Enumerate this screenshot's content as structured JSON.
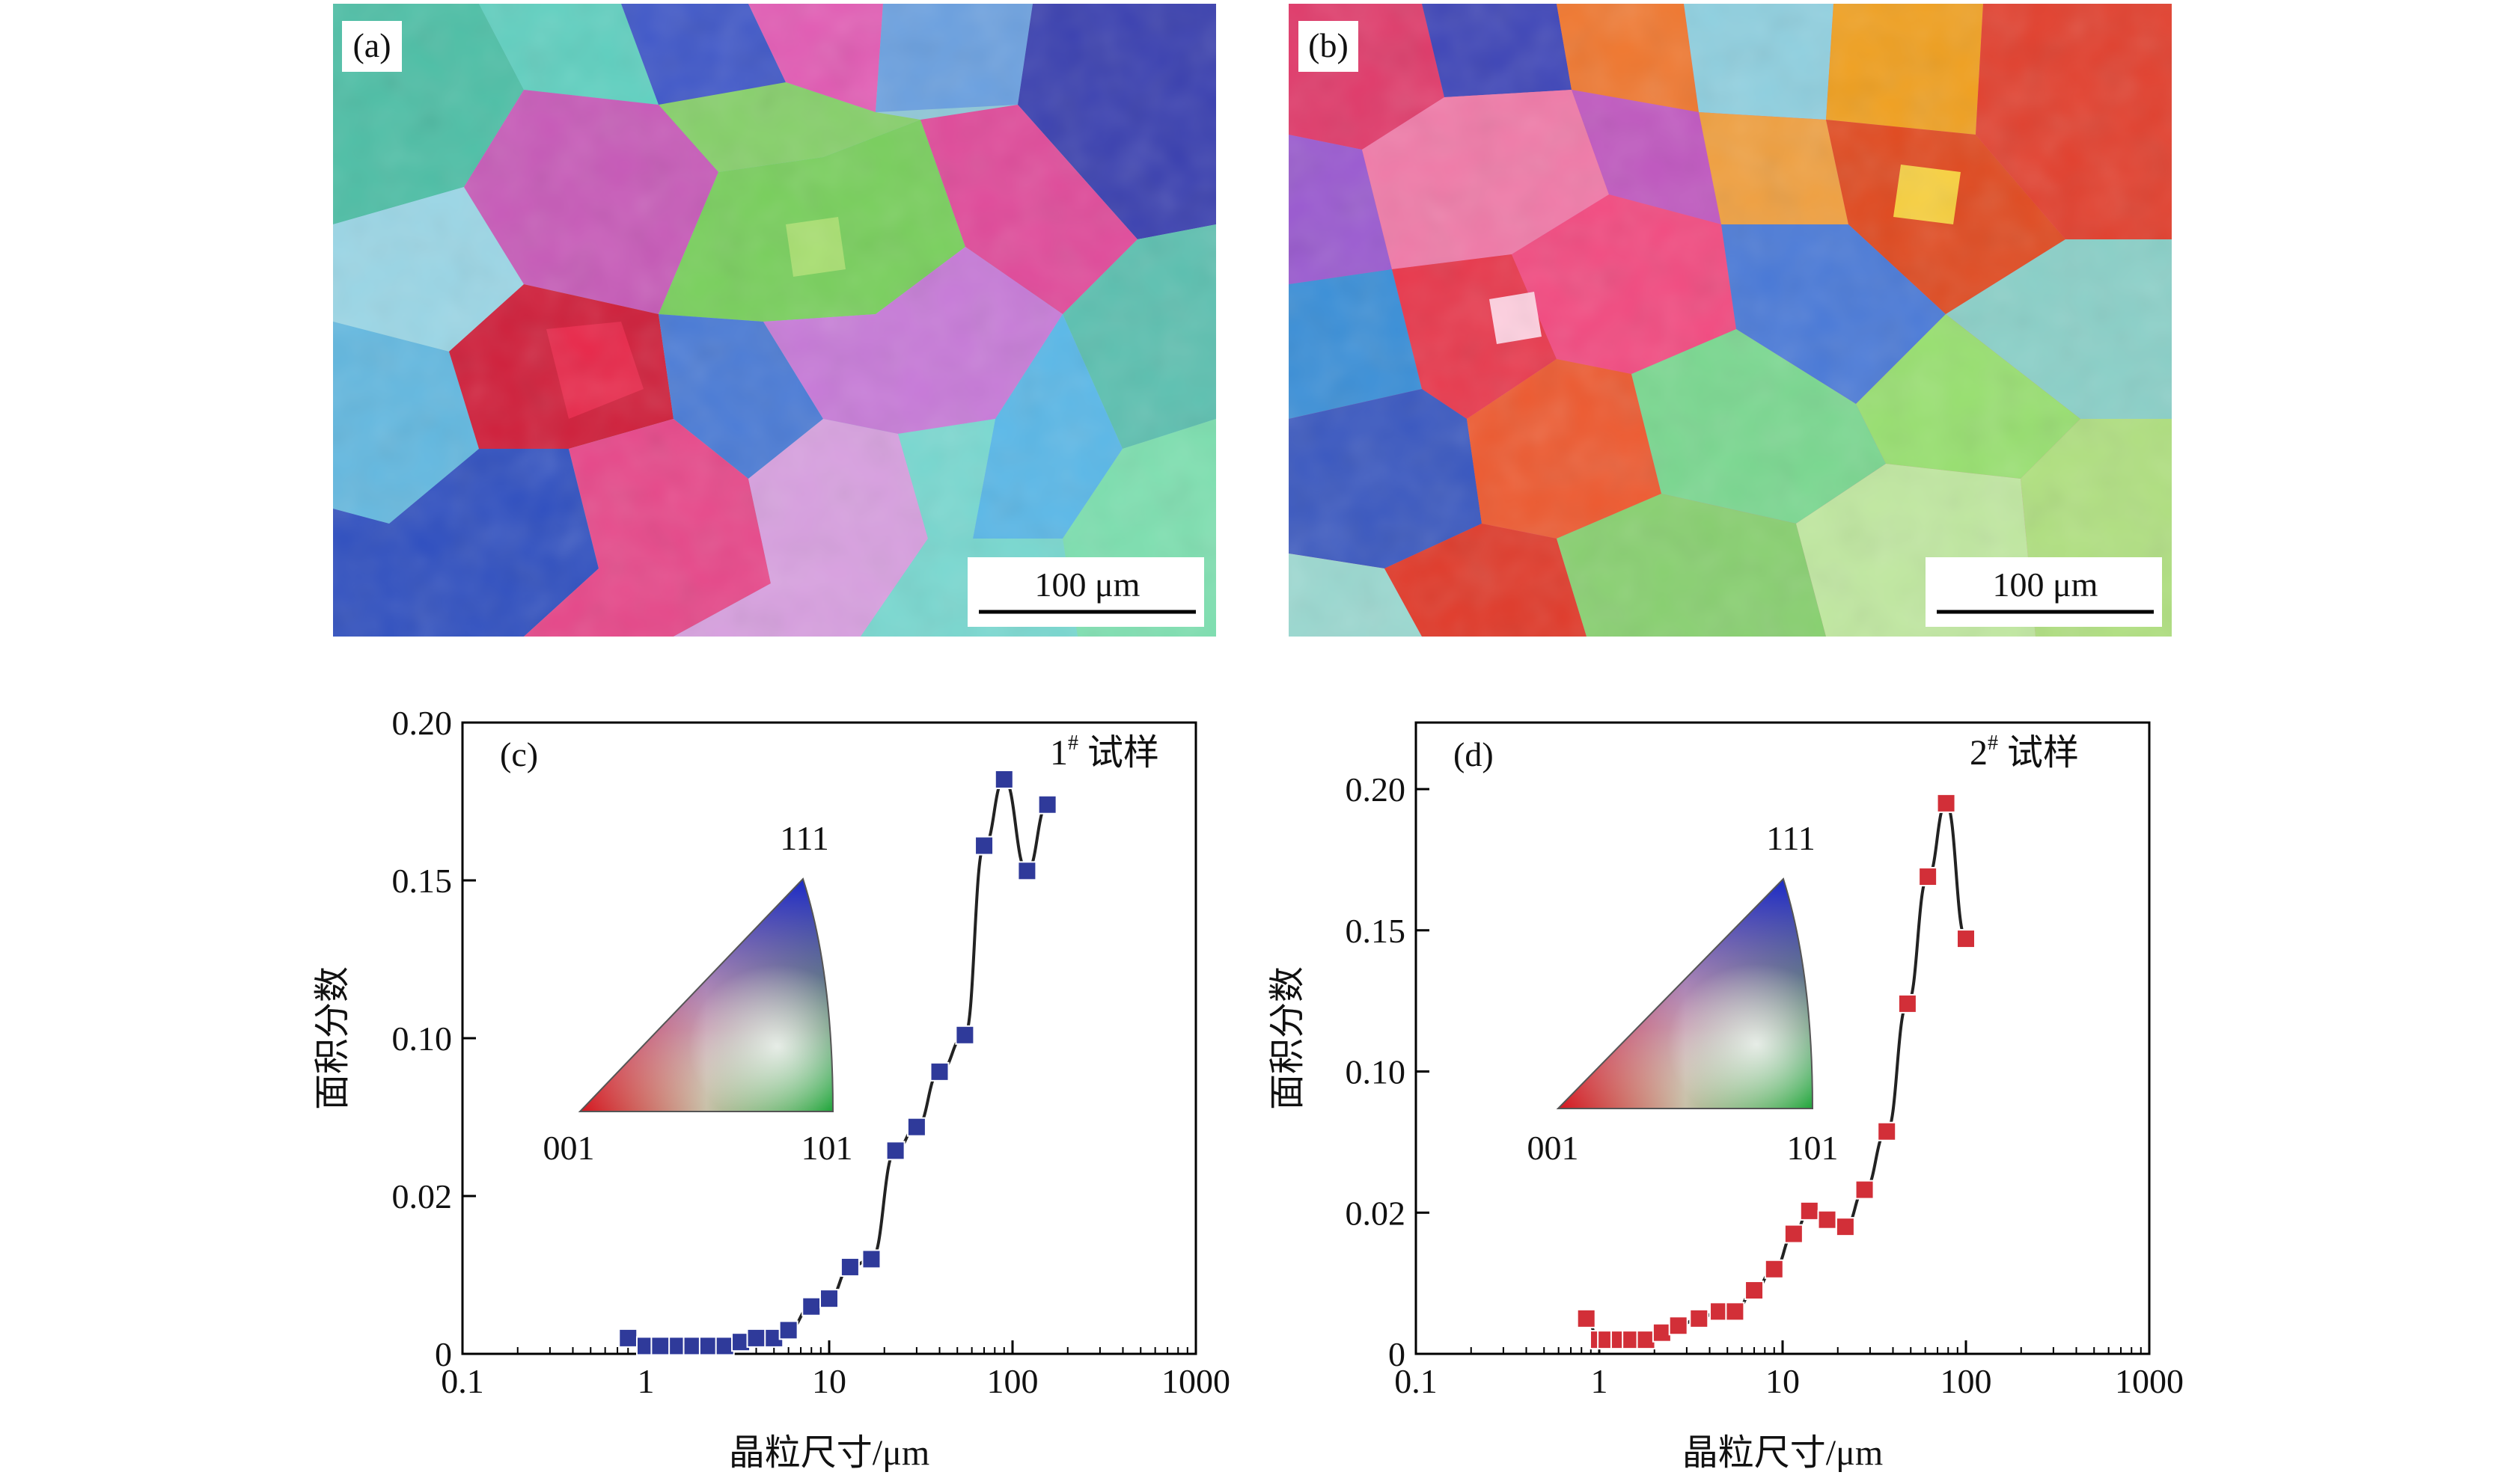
{
  "panels": {
    "a": {
      "label": "(a)",
      "scale_bar": "100 μm"
    },
    "b": {
      "label": "(b)",
      "scale_bar": "100 μm"
    }
  },
  "chart_data": [
    {
      "type": "line",
      "panel_label": "(c)",
      "sample_label": "1",
      "sample_sup": "#",
      "sample_suffix": " 试样",
      "xlabel": "晶粒尺寸/μm",
      "ylabel": "面积分数",
      "x_scale": "log",
      "xlim": [
        0.1,
        1000
      ],
      "x_ticks": [
        "0.1",
        "1",
        "10",
        "100",
        "1000"
      ],
      "y_ticks": [
        "0",
        "0.02",
        "0.10",
        "0.15",
        "0.20"
      ],
      "marker_color": "#2f3a9a",
      "legend_triangle": [
        "111",
        "001",
        "101"
      ],
      "series": [
        {
          "x": [
            0.8,
            1.0,
            1.2,
            1.5,
            1.8,
            2.2,
            2.7,
            3.3,
            4.0,
            5.0,
            6.0,
            8.0,
            10.0,
            13.0,
            17.0,
            23.0,
            30.0,
            40.0,
            55.0,
            70.0,
            90.0,
            120.0,
            155.0
          ],
          "y": [
            0.002,
            0.001,
            0.001,
            0.001,
            0.001,
            0.001,
            0.001,
            0.0015,
            0.002,
            0.002,
            0.003,
            0.006,
            0.007,
            0.011,
            0.012,
            0.043,
            0.055,
            0.083,
            0.101,
            0.161,
            0.182,
            0.153,
            0.174
          ]
        }
      ]
    },
    {
      "type": "line",
      "panel_label": "(d)",
      "sample_label": "2",
      "sample_sup": "#",
      "sample_suffix": " 试样",
      "xlabel": "晶粒尺寸/μm",
      "ylabel": "面积分数",
      "x_scale": "log",
      "xlim": [
        0.1,
        1000
      ],
      "x_ticks": [
        "0.1",
        "1",
        "10",
        "100",
        "1000"
      ],
      "y_ticks": [
        "0",
        "0.02",
        "0.10",
        "0.15",
        "0.20"
      ],
      "marker_color": "#d22f38",
      "legend_triangle": [
        "111",
        "001",
        "101"
      ],
      "series": [
        {
          "x": [
            0.85,
            1.0,
            1.1,
            1.3,
            1.5,
            1.8,
            2.2,
            2.7,
            3.5,
            4.5,
            5.5,
            7.0,
            9.0,
            11.5,
            14.0,
            17.5,
            22.0,
            28.0,
            37.0,
            48.0,
            62.0,
            78.0,
            100.0
          ],
          "y": [
            0.005,
            0.002,
            0.002,
            0.002,
            0.002,
            0.002,
            0.003,
            0.004,
            0.005,
            0.006,
            0.006,
            0.009,
            0.012,
            0.017,
            0.021,
            0.019,
            0.018,
            0.033,
            0.066,
            0.124,
            0.169,
            0.195,
            0.147
          ]
        }
      ]
    }
  ]
}
